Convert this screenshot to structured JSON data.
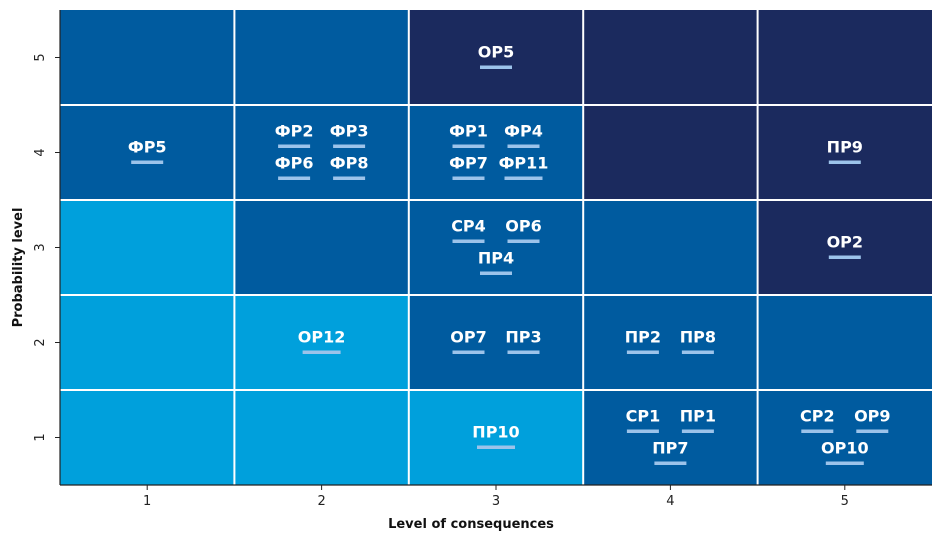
{
  "chart_data": {
    "type": "heatmap",
    "title": "",
    "xlabel": "Level of consequences",
    "ylabel": "Probability level",
    "x_ticks": [
      "1",
      "2",
      "3",
      "4",
      "5"
    ],
    "y_ticks": [
      "1",
      "2",
      "3",
      "4",
      "5"
    ],
    "grid": true,
    "legend": "none",
    "colors": {
      "light": "#00a0dc",
      "medium": "#005b9f",
      "dark": "#1b2a5e",
      "underline": "#9cc3ea",
      "gridline": "#ffffff",
      "axis": "#222222"
    },
    "cells": [
      {
        "consequence": 1,
        "probability": 5,
        "level": "medium",
        "risks": []
      },
      {
        "consequence": 2,
        "probability": 5,
        "level": "medium",
        "risks": []
      },
      {
        "consequence": 3,
        "probability": 5,
        "level": "dark",
        "risks": [
          "ОР5"
        ]
      },
      {
        "consequence": 4,
        "probability": 5,
        "level": "dark",
        "risks": []
      },
      {
        "consequence": 5,
        "probability": 5,
        "level": "dark",
        "risks": []
      },
      {
        "consequence": 1,
        "probability": 4,
        "level": "medium",
        "risks": [
          "ФР5"
        ]
      },
      {
        "consequence": 2,
        "probability": 4,
        "level": "medium",
        "risks": [
          "ФР2",
          "ФР3",
          "ФР6",
          "ФР8"
        ]
      },
      {
        "consequence": 3,
        "probability": 4,
        "level": "medium",
        "risks": [
          "ФР1",
          "ФР4",
          "ФР7",
          "ФР11"
        ]
      },
      {
        "consequence": 4,
        "probability": 4,
        "level": "dark",
        "risks": []
      },
      {
        "consequence": 5,
        "probability": 4,
        "level": "dark",
        "risks": [
          "ПР9"
        ]
      },
      {
        "consequence": 1,
        "probability": 3,
        "level": "light",
        "risks": []
      },
      {
        "consequence": 2,
        "probability": 3,
        "level": "medium",
        "risks": []
      },
      {
        "consequence": 3,
        "probability": 3,
        "level": "medium",
        "risks": [
          "СР4",
          "ОР6",
          "ПР4"
        ]
      },
      {
        "consequence": 4,
        "probability": 3,
        "level": "medium",
        "risks": []
      },
      {
        "consequence": 5,
        "probability": 3,
        "level": "dark",
        "risks": [
          "ОР2"
        ]
      },
      {
        "consequence": 1,
        "probability": 2,
        "level": "light",
        "risks": []
      },
      {
        "consequence": 2,
        "probability": 2,
        "level": "light",
        "risks": [
          "ОР12"
        ]
      },
      {
        "consequence": 3,
        "probability": 2,
        "level": "medium",
        "risks": [
          "ОР7",
          "ПР3"
        ]
      },
      {
        "consequence": 4,
        "probability": 2,
        "level": "medium",
        "risks": [
          "ПР2",
          "ПР8"
        ]
      },
      {
        "consequence": 5,
        "probability": 2,
        "level": "medium",
        "risks": []
      },
      {
        "consequence": 1,
        "probability": 1,
        "level": "light",
        "risks": []
      },
      {
        "consequence": 2,
        "probability": 1,
        "level": "light",
        "risks": []
      },
      {
        "consequence": 3,
        "probability": 1,
        "level": "light",
        "risks": [
          "ПР10"
        ]
      },
      {
        "consequence": 4,
        "probability": 1,
        "level": "medium",
        "risks": [
          "СР1",
          "ПР1",
          "ПР7"
        ]
      },
      {
        "consequence": 5,
        "probability": 1,
        "level": "medium",
        "risks": [
          "СР2",
          "ОР9",
          "ОР10"
        ]
      }
    ]
  }
}
